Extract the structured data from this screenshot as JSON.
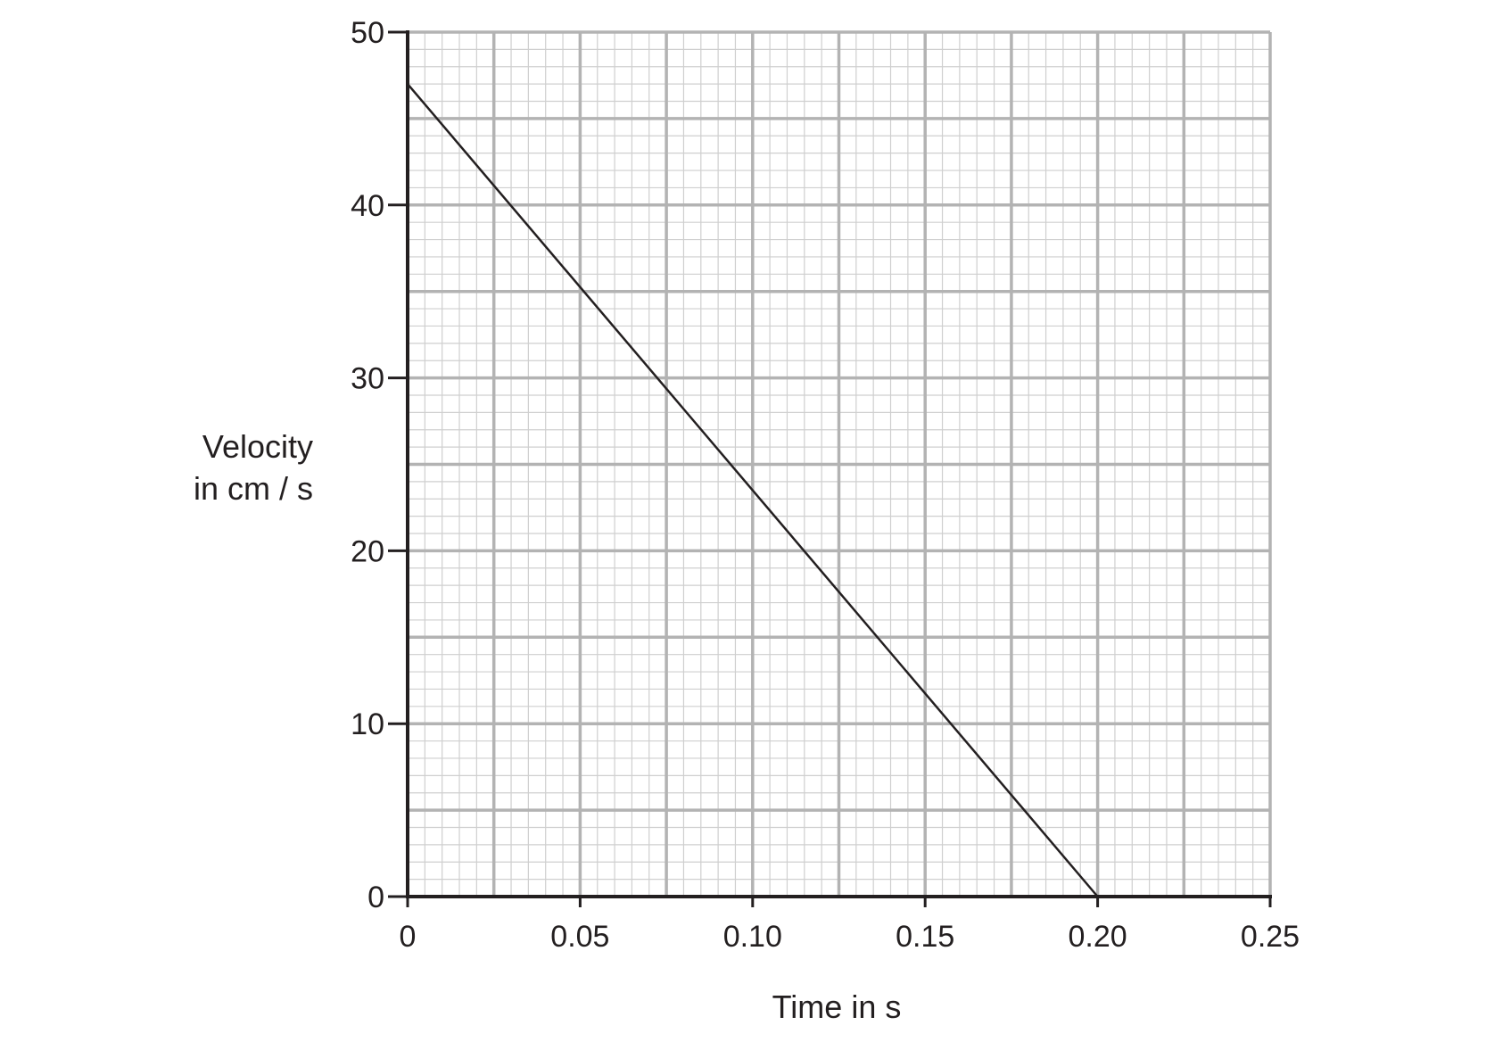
{
  "chart_data": {
    "type": "line",
    "xlabel": "Time in s",
    "ylabel_lines": [
      "Velocity",
      "in cm / s"
    ],
    "xlim": [
      0,
      0.25
    ],
    "ylim": [
      0,
      50
    ],
    "x_ticks": [
      0,
      0.05,
      0.1,
      0.15,
      0.2,
      0.25
    ],
    "x_tick_labels": [
      "0",
      "0.05",
      "0.10",
      "0.15",
      "0.20",
      "0.25"
    ],
    "y_ticks": [
      0,
      10,
      20,
      30,
      40,
      50
    ],
    "y_tick_labels": [
      "0",
      "10",
      "20",
      "30",
      "40",
      "50"
    ],
    "grid": true,
    "series": [
      {
        "x": [
          0,
          0.2
        ],
        "y": [
          47,
          0
        ]
      }
    ],
    "colors": {
      "line": "#231f20",
      "axis": "#231f20",
      "grid_major": "#b3b3b3",
      "grid_minor": "#cfcfcf"
    }
  }
}
